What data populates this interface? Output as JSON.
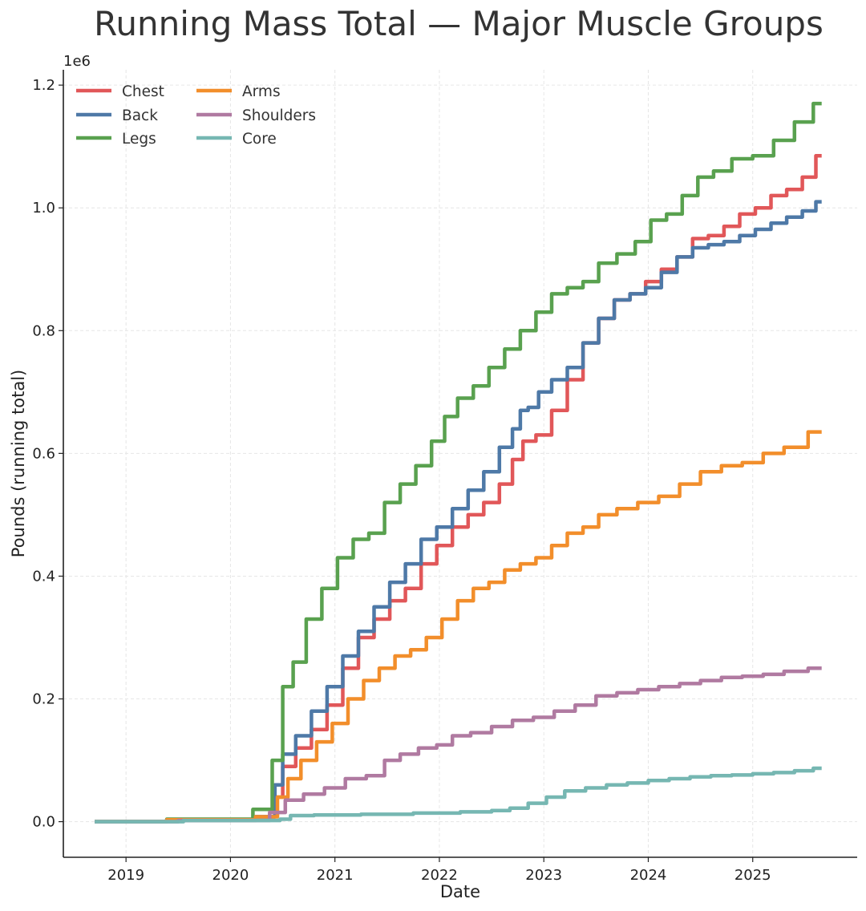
{
  "chart_data": {
    "type": "line",
    "title": "Running Mass Total — Major Muscle Groups",
    "xlabel": "Date",
    "ylabel": "Pounds (running total)",
    "y_offset_label": "1e6",
    "y_unit_multiplier": 1000000,
    "xlim": [
      2018.4,
      2026.0
    ],
    "ylim": [
      -0.058,
      1.225
    ],
    "x_ticks": [
      2019,
      2020,
      2021,
      2022,
      2023,
      2024,
      2025
    ],
    "x_tick_labels": [
      "2019",
      "2020",
      "2021",
      "2022",
      "2023",
      "2024",
      "2025"
    ],
    "y_ticks": [
      0.0,
      0.2,
      0.4,
      0.6,
      0.8,
      1.0,
      1.2
    ],
    "y_tick_labels": [
      "0.0",
      "0.2",
      "0.4",
      "0.6",
      "0.8",
      "1.0",
      "1.2"
    ],
    "grid": true,
    "legend_position": "top-left",
    "legend_columns": 2,
    "series": [
      {
        "name": "Chest",
        "color": "#e15759",
        "x": [
          2018.7,
          2020.08,
          2020.4,
          2020.45,
          2020.55,
          2020.7,
          2020.85,
          2021.0,
          2021.15,
          2021.3,
          2021.45,
          2021.6,
          2021.75,
          2021.9,
          2022.05,
          2022.2,
          2022.35,
          2022.5,
          2022.65,
          2022.75,
          2022.85,
          2023.0,
          2023.15,
          2023.3,
          2023.45,
          2023.6,
          2023.75,
          2023.9,
          2024.05,
          2024.2,
          2024.35,
          2024.5,
          2024.65,
          2024.8,
          2024.95,
          2025.1,
          2025.25,
          2025.4,
          2025.55,
          2025.66
        ],
        "y": [
          0.0,
          0.002,
          0.008,
          0.04,
          0.09,
          0.12,
          0.15,
          0.19,
          0.25,
          0.3,
          0.33,
          0.36,
          0.38,
          0.42,
          0.45,
          0.48,
          0.5,
          0.52,
          0.55,
          0.59,
          0.62,
          0.63,
          0.67,
          0.72,
          0.78,
          0.82,
          0.85,
          0.86,
          0.88,
          0.9,
          0.92,
          0.95,
          0.955,
          0.97,
          0.99,
          1.0,
          1.02,
          1.03,
          1.05,
          1.085
        ]
      },
      {
        "name": "Back",
        "color": "#4e79a7",
        "x": [
          2018.7,
          2020.08,
          2020.4,
          2020.45,
          2020.55,
          2020.7,
          2020.85,
          2021.0,
          2021.15,
          2021.3,
          2021.45,
          2021.6,
          2021.75,
          2021.9,
          2022.05,
          2022.2,
          2022.35,
          2022.5,
          2022.65,
          2022.75,
          2022.8,
          2022.9,
          2023.0,
          2023.15,
          2023.3,
          2023.45,
          2023.6,
          2023.75,
          2023.9,
          2024.05,
          2024.2,
          2024.35,
          2024.5,
          2024.65,
          2024.8,
          2024.95,
          2025.1,
          2025.25,
          2025.4,
          2025.55,
          2025.66
        ],
        "y": [
          0.0,
          0.002,
          0.008,
          0.06,
          0.11,
          0.14,
          0.18,
          0.22,
          0.27,
          0.31,
          0.35,
          0.39,
          0.42,
          0.46,
          0.48,
          0.51,
          0.54,
          0.57,
          0.61,
          0.64,
          0.67,
          0.675,
          0.7,
          0.72,
          0.74,
          0.78,
          0.82,
          0.85,
          0.86,
          0.87,
          0.895,
          0.92,
          0.935,
          0.94,
          0.945,
          0.955,
          0.965,
          0.975,
          0.985,
          0.995,
          1.01
        ]
      },
      {
        "name": "Legs",
        "color": "#59a14f",
        "x": [
          2018.7,
          2020.08,
          2020.35,
          2020.45,
          2020.55,
          2020.65,
          2020.8,
          2020.95,
          2021.1,
          2021.25,
          2021.4,
          2021.55,
          2021.7,
          2021.85,
          2022.0,
          2022.1,
          2022.25,
          2022.4,
          2022.55,
          2022.7,
          2022.85,
          2023.0,
          2023.15,
          2023.3,
          2023.45,
          2023.6,
          2023.8,
          2023.95,
          2024.1,
          2024.25,
          2024.4,
          2024.55,
          2024.7,
          2024.9,
          2025.1,
          2025.3,
          2025.5,
          2025.66
        ],
        "y": [
          0.0,
          0.004,
          0.02,
          0.1,
          0.22,
          0.26,
          0.33,
          0.38,
          0.43,
          0.46,
          0.47,
          0.52,
          0.55,
          0.58,
          0.62,
          0.66,
          0.69,
          0.71,
          0.74,
          0.77,
          0.8,
          0.83,
          0.86,
          0.87,
          0.88,
          0.91,
          0.925,
          0.945,
          0.98,
          0.99,
          1.02,
          1.05,
          1.06,
          1.08,
          1.085,
          1.11,
          1.14,
          1.17
        ]
      },
      {
        "name": "Arms",
        "color": "#f28e2b",
        "x": [
          2018.7,
          2020.08,
          2020.4,
          2020.5,
          2020.6,
          2020.75,
          2020.9,
          2021.05,
          2021.2,
          2021.35,
          2021.5,
          2021.65,
          2021.8,
          2021.95,
          2022.1,
          2022.25,
          2022.4,
          2022.55,
          2022.7,
          2022.85,
          2023.0,
          2023.15,
          2023.3,
          2023.45,
          2023.6,
          2023.8,
          2024.0,
          2024.2,
          2024.4,
          2024.6,
          2024.8,
          2025.0,
          2025.2,
          2025.4,
          2025.66
        ],
        "y": [
          0.0,
          0.003,
          0.008,
          0.04,
          0.07,
          0.1,
          0.13,
          0.16,
          0.2,
          0.23,
          0.25,
          0.27,
          0.28,
          0.3,
          0.33,
          0.36,
          0.38,
          0.39,
          0.41,
          0.42,
          0.43,
          0.45,
          0.47,
          0.48,
          0.5,
          0.51,
          0.52,
          0.53,
          0.55,
          0.57,
          0.58,
          0.585,
          0.6,
          0.61,
          0.635
        ]
      },
      {
        "name": "Shoulders",
        "color": "#b07aa1",
        "x": [
          2018.7,
          2020.3,
          2020.45,
          2020.6,
          2020.8,
          2021.0,
          2021.2,
          2021.4,
          2021.55,
          2021.7,
          2021.9,
          2022.05,
          2022.2,
          2022.4,
          2022.6,
          2022.8,
          2023.0,
          2023.2,
          2023.4,
          2023.6,
          2023.8,
          2024.0,
          2024.2,
          2024.4,
          2024.6,
          2024.8,
          2025.0,
          2025.2,
          2025.4,
          2025.66
        ],
        "y": [
          0.0,
          0.002,
          0.015,
          0.035,
          0.045,
          0.055,
          0.07,
          0.075,
          0.1,
          0.11,
          0.12,
          0.125,
          0.14,
          0.145,
          0.155,
          0.165,
          0.17,
          0.18,
          0.19,
          0.205,
          0.21,
          0.215,
          0.22,
          0.225,
          0.23,
          0.235,
          0.237,
          0.24,
          0.245,
          0.25
        ]
      },
      {
        "name": "Core",
        "color": "#76b7b2",
        "x": [
          2018.7,
          2020.4,
          2020.55,
          2020.6,
          2021.0,
          2021.5,
          2022.0,
          2022.4,
          2022.6,
          2022.75,
          2022.95,
          2023.1,
          2023.3,
          2023.5,
          2023.7,
          2023.9,
          2024.1,
          2024.3,
          2024.5,
          2024.7,
          2024.9,
          2025.1,
          2025.3,
          2025.5,
          2025.66
        ],
        "y": [
          0.0,
          0.002,
          0.004,
          0.01,
          0.011,
          0.012,
          0.014,
          0.016,
          0.018,
          0.022,
          0.03,
          0.04,
          0.05,
          0.055,
          0.06,
          0.063,
          0.067,
          0.07,
          0.073,
          0.075,
          0.076,
          0.078,
          0.08,
          0.083,
          0.087
        ]
      }
    ]
  }
}
